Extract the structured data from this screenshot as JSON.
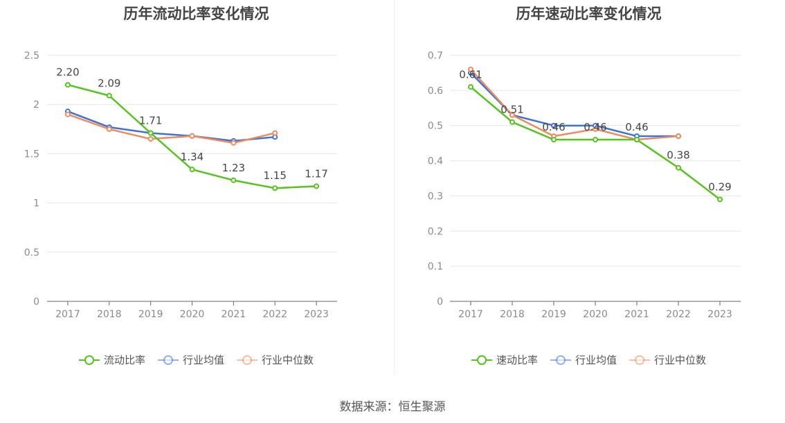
{
  "source_text": "数据来源：恒生聚源",
  "chart_data": [
    {
      "type": "line",
      "title": "历年流动比率变化情况",
      "categories": [
        "2017",
        "2018",
        "2019",
        "2020",
        "2021",
        "2022",
        "2023"
      ],
      "ylim": [
        0,
        2.5
      ],
      "yticks": [
        0,
        0.5,
        1,
        1.5,
        2,
        2.5
      ],
      "ytick_labels": [
        "0",
        "0.5",
        "1",
        "1.5",
        "2",
        "2.5"
      ],
      "grid": true,
      "legend_position": "bottom",
      "series": [
        {
          "name": "流动比率",
          "color": "#52c41a",
          "values": [
            2.2,
            2.09,
            1.71,
            1.34,
            1.23,
            1.15,
            1.17
          ],
          "labels": [
            "2.20",
            "2.09",
            "1.71",
            "1.34",
            "1.23",
            "1.15",
            "1.17"
          ]
        },
        {
          "name": "行业均值",
          "color": "#3b73d9",
          "values": [
            1.93,
            1.77,
            1.71,
            1.68,
            1.63,
            1.67,
            null
          ]
        },
        {
          "name": "行业中位数",
          "color": "#f08a5d",
          "values": [
            1.9,
            1.75,
            1.65,
            1.68,
            1.61,
            1.71,
            null
          ]
        }
      ]
    },
    {
      "type": "line",
      "title": "历年速动比率变化情况",
      "categories": [
        "2017",
        "2018",
        "2019",
        "2020",
        "2021",
        "2022",
        "2023"
      ],
      "ylim": [
        0,
        0.7
      ],
      "yticks": [
        0,
        0.1,
        0.2,
        0.3,
        0.4,
        0.5,
        0.6,
        0.7
      ],
      "ytick_labels": [
        "0",
        "0.1",
        "0.2",
        "0.3",
        "0.4",
        "0.5",
        "0.6",
        "0.7"
      ],
      "grid": true,
      "legend_position": "bottom",
      "series": [
        {
          "name": "速动比率",
          "color": "#52c41a",
          "values": [
            0.61,
            0.51,
            0.46,
            0.46,
            0.46,
            0.38,
            0.29
          ],
          "labels": [
            "0.61",
            "0.51",
            "0.46",
            "0.46",
            "0.46",
            "0.38",
            "0.29"
          ]
        },
        {
          "name": "行业均值",
          "color": "#3b73d9",
          "values": [
            0.65,
            0.53,
            0.5,
            0.5,
            0.47,
            0.47,
            null
          ]
        },
        {
          "name": "行业中位数",
          "color": "#f08a5d",
          "values": [
            0.66,
            0.53,
            0.47,
            0.49,
            0.46,
            0.47,
            null
          ]
        }
      ]
    }
  ]
}
